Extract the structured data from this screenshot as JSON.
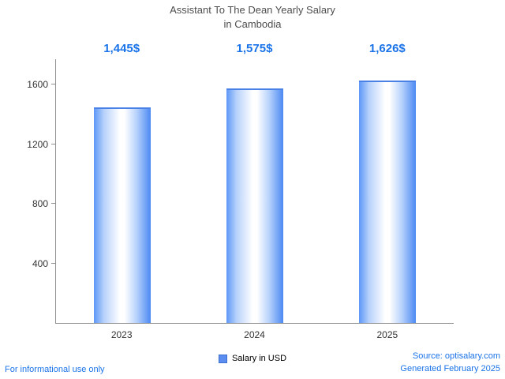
{
  "title": {
    "line1": "Assistant To The Dean Yearly Salary",
    "line2": "in Cambodia"
  },
  "chart_data": {
    "type": "bar",
    "categories": [
      "2023",
      "2024",
      "2025"
    ],
    "values": [
      1445,
      1575,
      1626
    ],
    "value_labels": [
      "1,445$",
      "1,575$",
      "1,626$"
    ],
    "series_name": "Salary in USD",
    "title": "Assistant To The Dean Yearly Salary in Cambodia",
    "xlabel": "",
    "ylabel": "",
    "yticks": [
      400,
      800,
      1200,
      1600
    ],
    "ylim": [
      0,
      1770
    ],
    "grid": false,
    "legend_position": "bottom",
    "bar_color": "#4c89f3",
    "value_label_color": "#1a73e8"
  },
  "legend": {
    "label": "Salary in USD"
  },
  "footer": {
    "left": "For informational use only",
    "source": "Source: optisalary.com",
    "generated": "Generated February 2025"
  }
}
